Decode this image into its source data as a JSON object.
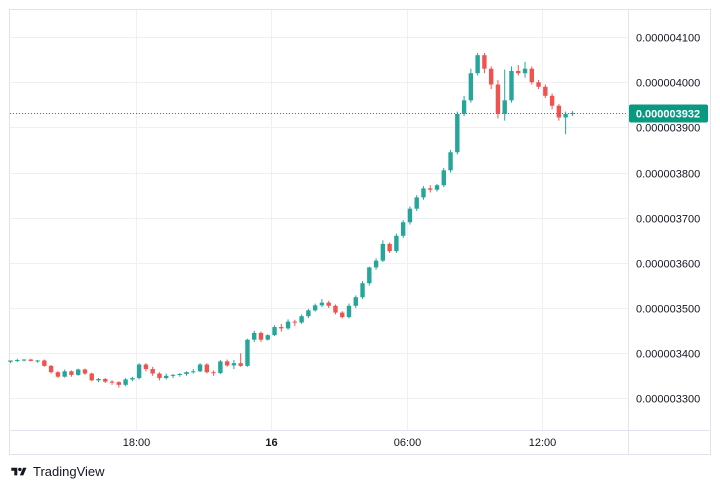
{
  "brand": {
    "name": "TradingView",
    "logo_icon": "tradingview-logo-icon"
  },
  "colors": {
    "up": "#26a69a",
    "down": "#ef5350",
    "grid": "#eef0f4",
    "last_price_bg": "#089981",
    "text": "#131722"
  },
  "chart_data": {
    "type": "candlestick",
    "title": "",
    "xlabel": "",
    "ylabel": "",
    "ylim": [
      3.23e-06,
      4.16e-06
    ],
    "y_ticks": [
      "0.000003300",
      "0.000003400",
      "0.000003500",
      "0.000003600",
      "0.000003700",
      "0.000003800",
      "0.000003900",
      "0.000004000",
      "0.000004100"
    ],
    "x_ticks": [
      {
        "label": "18:00",
        "bar": 18.5,
        "bold": false
      },
      {
        "label": "16",
        "bar": 38.5,
        "bold": true
      },
      {
        "label": "06:00",
        "bar": 58.5,
        "bold": false
      },
      {
        "label": "12:00",
        "bar": 78.5,
        "bold": false
      }
    ],
    "last_price": {
      "label": "0.000003932",
      "value": 3.932e-06
    },
    "grid": true,
    "bar_interval": "30m",
    "candles": [
      [
        3.381,
        3.384,
        3.378,
        3.384
      ],
      [
        3.384,
        3.388,
        3.38,
        3.385
      ],
      [
        3.385,
        3.387,
        3.382,
        3.386
      ],
      [
        3.386,
        3.388,
        3.382,
        3.383
      ],
      [
        3.383,
        3.385,
        3.379,
        3.384
      ],
      [
        3.384,
        3.386,
        3.37,
        3.372
      ],
      [
        3.372,
        3.374,
        3.355,
        3.358
      ],
      [
        3.358,
        3.36,
        3.345,
        3.348
      ],
      [
        3.348,
        3.364,
        3.346,
        3.36
      ],
      [
        3.36,
        3.362,
        3.348,
        3.352
      ],
      [
        3.352,
        3.366,
        3.35,
        3.364
      ],
      [
        3.364,
        3.366,
        3.352,
        3.355
      ],
      [
        3.355,
        3.357,
        3.338,
        3.34
      ],
      [
        3.34,
        3.345,
        3.336,
        3.343
      ],
      [
        3.343,
        3.345,
        3.334,
        3.337
      ],
      [
        3.337,
        3.34,
        3.33,
        3.336
      ],
      [
        3.336,
        3.338,
        3.324,
        3.33
      ],
      [
        3.33,
        3.345,
        3.327,
        3.342
      ],
      [
        3.342,
        3.348,
        3.338,
        3.345
      ],
      [
        3.345,
        3.378,
        3.342,
        3.375
      ],
      [
        3.375,
        3.378,
        3.36,
        3.365
      ],
      [
        3.365,
        3.37,
        3.35,
        3.355
      ],
      [
        3.355,
        3.358,
        3.34,
        3.345
      ],
      [
        3.345,
        3.355,
        3.342,
        3.35
      ],
      [
        3.35,
        3.354,
        3.345,
        3.352
      ],
      [
        3.352,
        3.356,
        3.348,
        3.354
      ],
      [
        3.354,
        3.36,
        3.35,
        3.358
      ],
      [
        3.358,
        3.365,
        3.355,
        3.36
      ],
      [
        3.36,
        3.378,
        3.358,
        3.375
      ],
      [
        3.375,
        3.378,
        3.355,
        3.358
      ],
      [
        3.358,
        3.362,
        3.35,
        3.356
      ],
      [
        3.356,
        3.385,
        3.354,
        3.382
      ],
      [
        3.382,
        3.386,
        3.37,
        3.373
      ],
      [
        3.373,
        3.385,
        3.365,
        3.378
      ],
      [
        3.378,
        3.4,
        3.37,
        3.372
      ],
      [
        3.372,
        3.432,
        3.37,
        3.43
      ],
      [
        3.43,
        3.45,
        3.425,
        3.445
      ],
      [
        3.445,
        3.448,
        3.425,
        3.43
      ],
      [
        3.43,
        3.442,
        3.428,
        3.44
      ],
      [
        3.44,
        3.462,
        3.438,
        3.458
      ],
      [
        3.458,
        3.465,
        3.448,
        3.455
      ],
      [
        3.455,
        3.475,
        3.452,
        3.47
      ],
      [
        3.47,
        3.474,
        3.46,
        3.468
      ],
      [
        3.468,
        3.486,
        3.465,
        3.482
      ],
      [
        3.482,
        3.498,
        3.478,
        3.495
      ],
      [
        3.495,
        3.51,
        3.492,
        3.506
      ],
      [
        3.506,
        3.52,
        3.502,
        3.512
      ],
      [
        3.512,
        3.516,
        3.5,
        3.505
      ],
      [
        3.505,
        3.508,
        3.486,
        3.49
      ],
      [
        3.49,
        3.493,
        3.477,
        3.48
      ],
      [
        3.48,
        3.51,
        3.477,
        3.505
      ],
      [
        3.505,
        3.528,
        3.5,
        3.524
      ],
      [
        3.524,
        3.56,
        3.52,
        3.555
      ],
      [
        3.555,
        3.592,
        3.55,
        3.59
      ],
      [
        3.59,
        3.61,
        3.585,
        3.605
      ],
      [
        3.605,
        3.65,
        3.602,
        3.642
      ],
      [
        3.642,
        3.645,
        3.622,
        3.626
      ],
      [
        3.626,
        3.665,
        3.622,
        3.66
      ],
      [
        3.66,
        3.695,
        3.655,
        3.69
      ],
      [
        3.69,
        3.725,
        3.685,
        3.72
      ],
      [
        3.72,
        3.75,
        3.715,
        3.745
      ],
      [
        3.745,
        3.77,
        3.74,
        3.765
      ],
      [
        3.765,
        3.772,
        3.756,
        3.762
      ],
      [
        3.762,
        3.775,
        3.758,
        3.772
      ],
      [
        3.772,
        3.81,
        3.768,
        3.805
      ],
      [
        3.805,
        3.85,
        3.8,
        3.845
      ],
      [
        3.845,
        3.935,
        3.84,
        3.93
      ],
      [
        3.93,
        3.97,
        3.925,
        3.96
      ],
      [
        3.96,
        4.03,
        3.955,
        4.02
      ],
      [
        4.02,
        4.065,
        4.015,
        4.06
      ],
      [
        4.06,
        4.065,
        4.02,
        4.03
      ],
      [
        4.03,
        4.035,
        3.985,
        3.995
      ],
      [
        3.995,
        4.005,
        3.92,
        3.93
      ],
      [
        3.93,
        4.028,
        3.915,
        3.96
      ],
      [
        3.96,
        4.035,
        3.955,
        4.025
      ],
      [
        4.025,
        4.038,
        4.015,
        4.02
      ],
      [
        4.02,
        4.045,
        4.01,
        4.03
      ],
      [
        4.03,
        4.035,
        3.995,
        4.0
      ],
      [
        4.0,
        4.005,
        3.985,
        3.99
      ],
      [
        3.99,
        3.995,
        3.965,
        3.97
      ],
      [
        3.97,
        3.975,
        3.94,
        3.948
      ],
      [
        3.948,
        3.952,
        3.915,
        3.922
      ],
      [
        3.922,
        3.935,
        3.885,
        3.93
      ],
      [
        3.93,
        3.936,
        3.925,
        3.932
      ]
    ]
  }
}
